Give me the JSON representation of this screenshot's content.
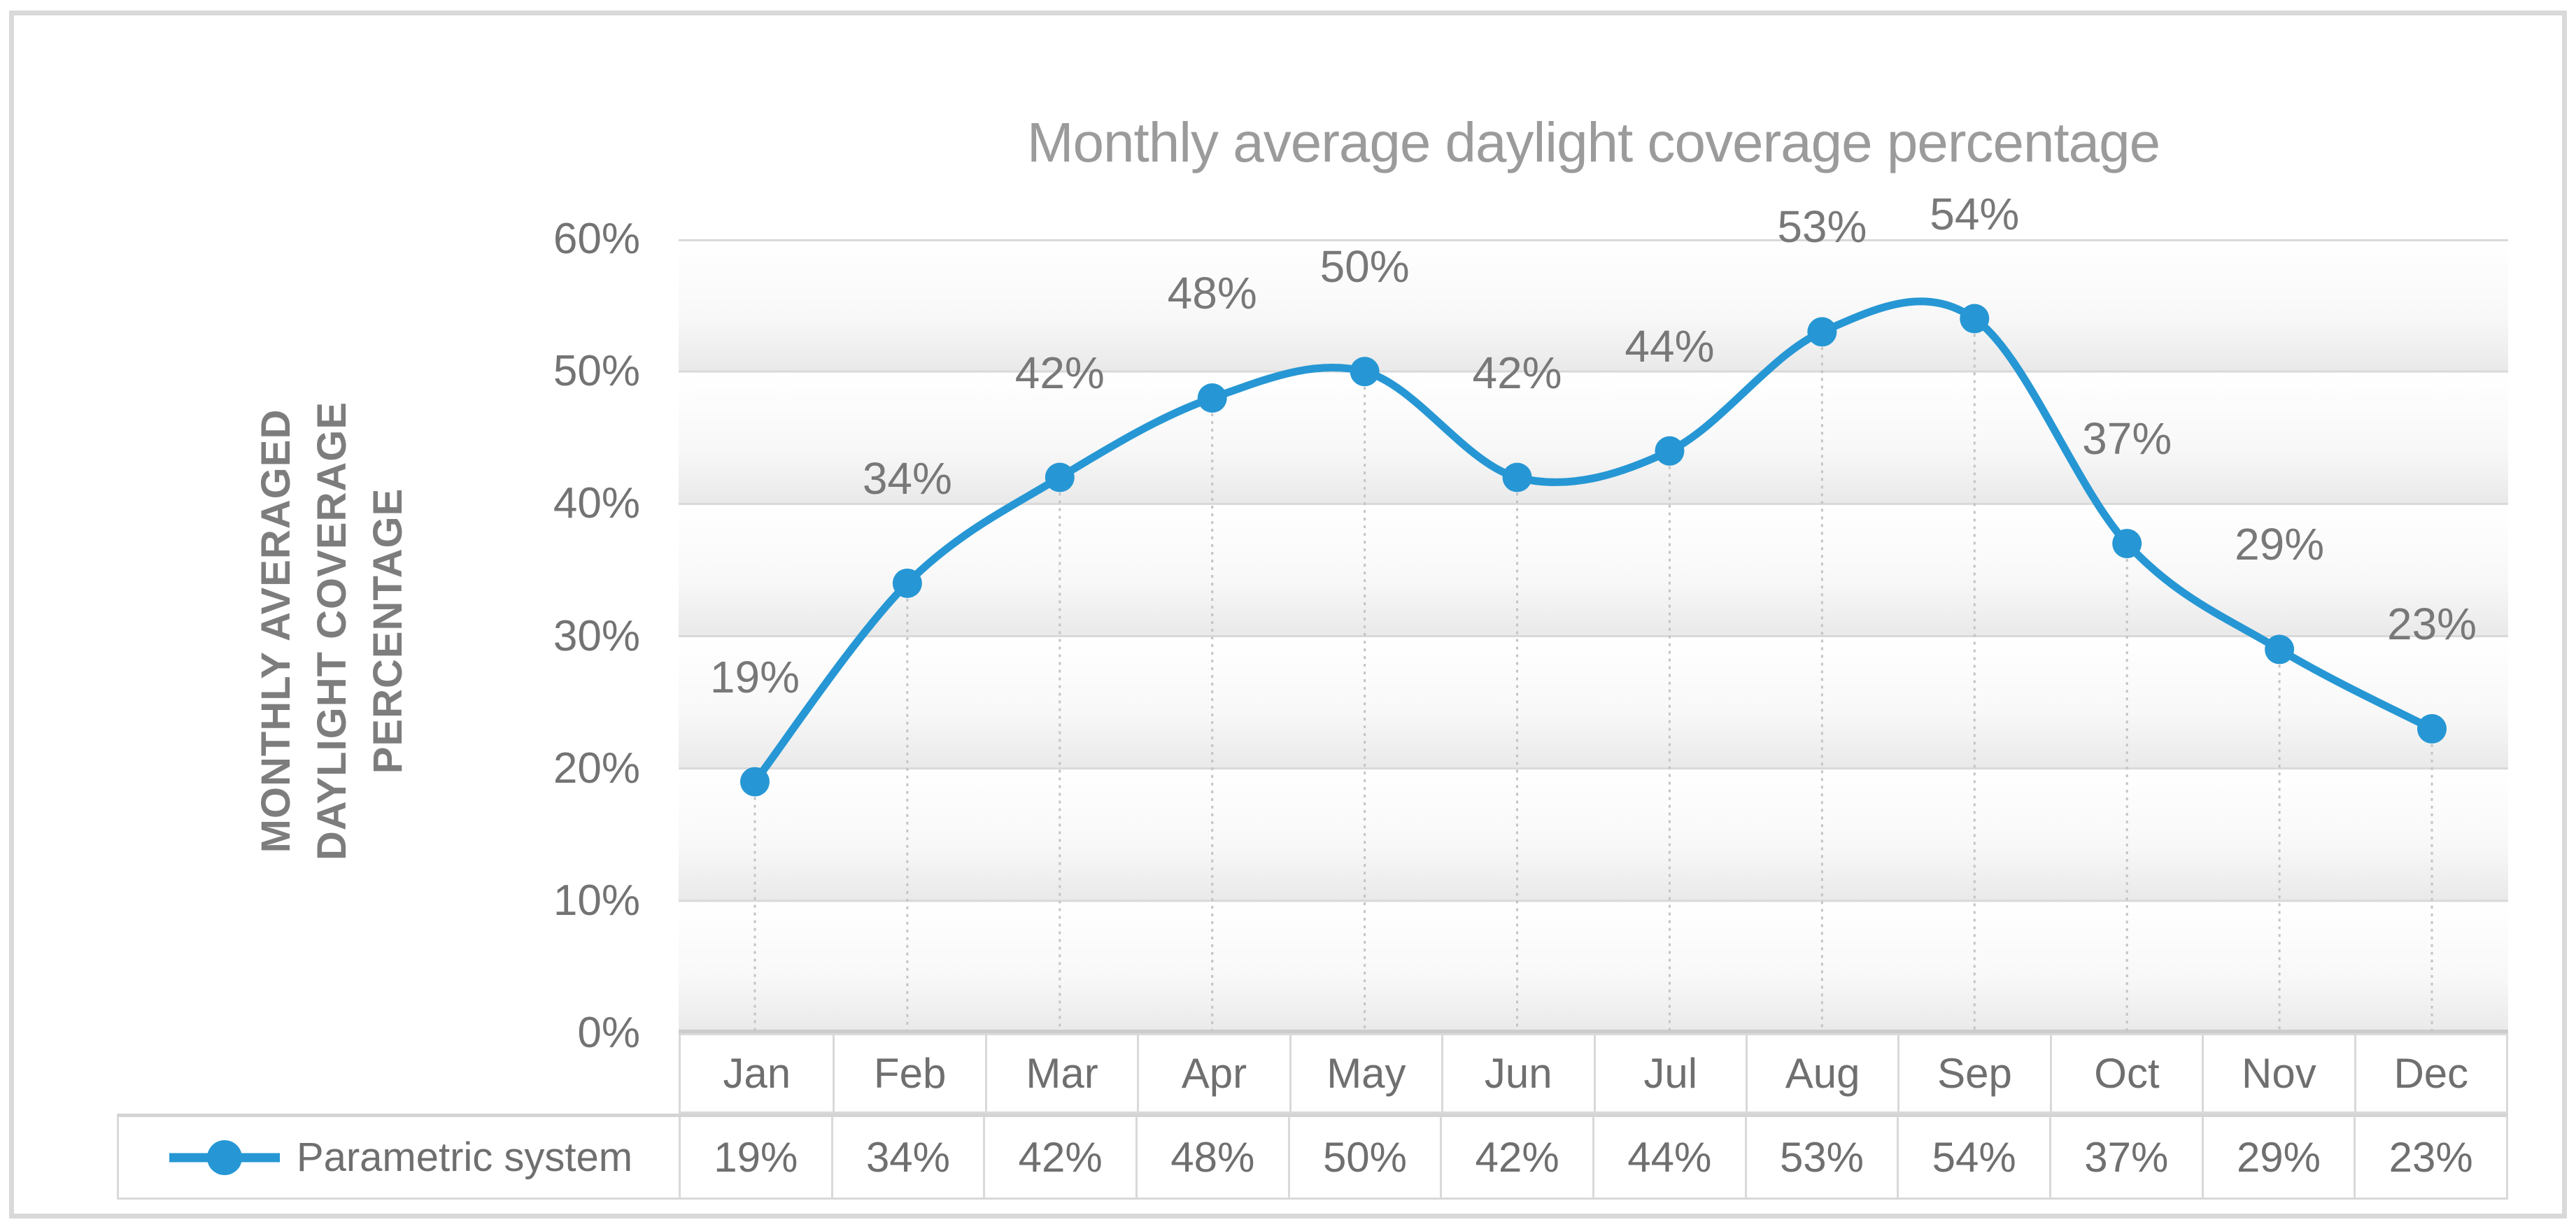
{
  "chart_data": {
    "type": "line",
    "title": "Monthly average daylight coverage percentage",
    "y_axis_title_lines": [
      "MONTHLY AVERAGED",
      "DAYLIGHT COVERAGE",
      "PERCENTAGE"
    ],
    "categories": [
      "Jan",
      "Feb",
      "Mar",
      "Apr",
      "May",
      "Jun",
      "Jul",
      "Aug",
      "Sep",
      "Oct",
      "Nov",
      "Dec"
    ],
    "series": [
      {
        "name": "Parametric system",
        "values": [
          19,
          34,
          42,
          48,
          50,
          42,
          44,
          53,
          54,
          37,
          29,
          23
        ],
        "display_labels": [
          "19%",
          "34%",
          "42%",
          "48%",
          "50%",
          "42%",
          "44%",
          "53%",
          "54%",
          "37%",
          "29%",
          "23%"
        ]
      }
    ],
    "ylim": [
      0,
      60
    ],
    "y_tick_step": 10,
    "y_tick_labels_top_to_bottom": [
      "60%",
      "50%",
      "40%",
      "30%",
      "20%",
      "10%",
      "0%"
    ],
    "xlabel": "",
    "ylabel": "MONTHLY AVERAGED DAYLIGHT COVERAGE PERCENTAGE",
    "grid": "horizontal solid gridlines, dotted vertical droplines from each point",
    "smooth": true,
    "legend_position": "bottom table row"
  },
  "colors": {
    "series_line": "#2697d4",
    "marker_fill": "#2697d4",
    "gridline": "#d9d9d9",
    "axis_line": "#cccccc",
    "dropline": "#c4c4c4",
    "plot_band_top": "#ffffff",
    "plot_band_bottom": "#e9e9e9",
    "frame_border": "#d9d9d9",
    "table_border": "#d9d9d9",
    "title_text": "#9b9b9b",
    "data_label_text": "#787878",
    "tick_text": "#737373",
    "table_text": "#6f6f6f",
    "y_axis_title_text": "#7d7d7d"
  }
}
